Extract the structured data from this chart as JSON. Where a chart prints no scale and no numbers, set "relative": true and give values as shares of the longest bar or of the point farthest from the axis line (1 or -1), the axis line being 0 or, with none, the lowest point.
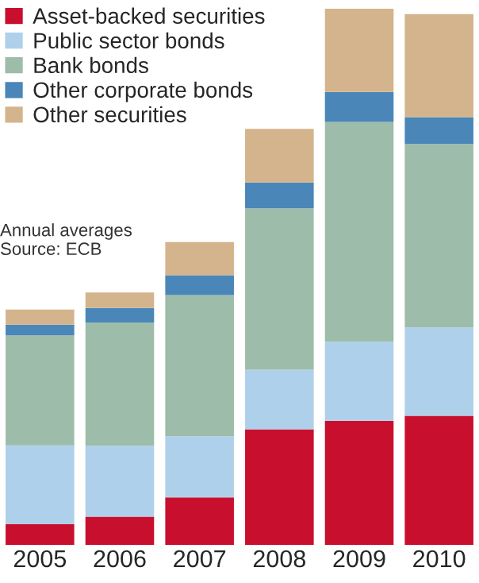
{
  "chart_data": {
    "type": "bar",
    "stacked": true,
    "relative": true,
    "legend": "top left",
    "grid": false,
    "categories": [
      "2005",
      "2006",
      "2007",
      "2008",
      "2009",
      "2010"
    ],
    "series": [
      {
        "name": "Asset-backed securities",
        "color": "#c8102e",
        "values": [
          0.039,
          0.053,
          0.089,
          0.216,
          0.232,
          0.241
        ]
      },
      {
        "name": "Public sector bonds",
        "color": "#aed0ea",
        "values": [
          0.147,
          0.132,
          0.114,
          0.111,
          0.147,
          0.165
        ]
      },
      {
        "name": "Bank bonds",
        "color": "#9dbcaa",
        "values": [
          0.205,
          0.23,
          0.263,
          0.301,
          0.41,
          0.342
        ]
      },
      {
        "name": "Other corporate bonds",
        "color": "#4a86b8",
        "values": [
          0.02,
          0.027,
          0.037,
          0.048,
          0.056,
          0.05
        ]
      },
      {
        "name": "Other securities",
        "color": "#d4b48c",
        "values": [
          0.028,
          0.029,
          0.062,
          0.1,
          0.155,
          0.192
        ]
      }
    ],
    "annotations": [
      "Annual averages",
      "Source: ECB"
    ]
  }
}
